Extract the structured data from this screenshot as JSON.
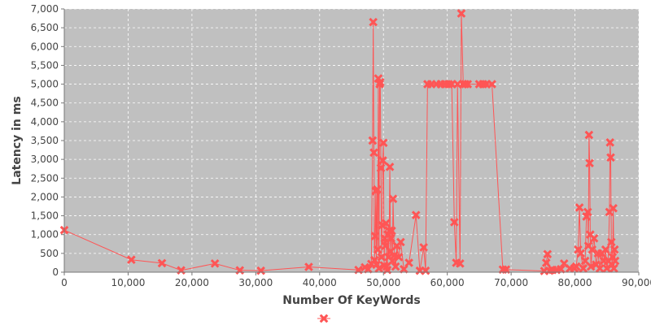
{
  "chart_data": {
    "type": "line",
    "title": "",
    "xlabel": "Number Of KeyWords",
    "ylabel": "Latency in ms",
    "xlim": [
      0,
      90000
    ],
    "ylim": [
      0,
      7000
    ],
    "xticks": [
      0,
      10000,
      20000,
      30000,
      40000,
      50000,
      60000,
      70000,
      80000,
      90000
    ],
    "yticks": [
      0,
      500,
      1000,
      1500,
      2000,
      2500,
      3000,
      3500,
      4000,
      4500,
      5000,
      5500,
      6000,
      6500,
      7000
    ],
    "grid": true,
    "legend_position": "bottom-center",
    "colors": {
      "series": "#ff5555",
      "plot_bg": "#c0c0c0",
      "grid": "#ffffff"
    },
    "series": [
      {
        "name": "",
        "marker": "x",
        "points": [
          [
            0,
            1120
          ],
          [
            10500,
            330
          ],
          [
            15300,
            240
          ],
          [
            18300,
            50
          ],
          [
            23600,
            230
          ],
          [
            27500,
            50
          ],
          [
            30800,
            40
          ],
          [
            38300,
            140
          ],
          [
            46100,
            60
          ],
          [
            47100,
            130
          ],
          [
            47600,
            80
          ],
          [
            48100,
            220
          ],
          [
            48300,
            3500
          ],
          [
            48400,
            6650
          ],
          [
            48500,
            3180
          ],
          [
            48600,
            320
          ],
          [
            48700,
            960
          ],
          [
            48800,
            2160
          ],
          [
            48900,
            200
          ],
          [
            49000,
            2200
          ],
          [
            49100,
            600
          ],
          [
            49200,
            5150
          ],
          [
            49300,
            100
          ],
          [
            49400,
            5000
          ],
          [
            49500,
            5050
          ],
          [
            49600,
            2770
          ],
          [
            49700,
            400
          ],
          [
            49800,
            1250
          ],
          [
            49900,
            2970
          ],
          [
            50000,
            3440
          ],
          [
            50100,
            180
          ],
          [
            50200,
            900
          ],
          [
            50300,
            700
          ],
          [
            50400,
            1300
          ],
          [
            50500,
            150
          ],
          [
            50600,
            60
          ],
          [
            50700,
            1000
          ],
          [
            50800,
            400
          ],
          [
            50900,
            1100
          ],
          [
            51000,
            2800
          ],
          [
            51100,
            550
          ],
          [
            51200,
            900
          ],
          [
            51300,
            1100
          ],
          [
            51400,
            300
          ],
          [
            51500,
            1950
          ],
          [
            51700,
            450
          ],
          [
            51900,
            150
          ],
          [
            52100,
            700
          ],
          [
            52400,
            400
          ],
          [
            52700,
            800
          ],
          [
            53200,
            80
          ],
          [
            54000,
            250
          ],
          [
            55100,
            1520
          ],
          [
            55700,
            40
          ],
          [
            56300,
            660
          ],
          [
            56600,
            40
          ],
          [
            56900,
            5000
          ],
          [
            57500,
            5000
          ],
          [
            58300,
            5000
          ],
          [
            59000,
            5000
          ],
          [
            59600,
            5000
          ],
          [
            60200,
            5000
          ],
          [
            60700,
            5000
          ],
          [
            61100,
            1330
          ],
          [
            61400,
            250
          ],
          [
            61600,
            5000
          ],
          [
            62000,
            230
          ],
          [
            62200,
            6880
          ],
          [
            62500,
            5000
          ],
          [
            62800,
            5000
          ],
          [
            63200,
            5000
          ],
          [
            65000,
            5000
          ],
          [
            65600,
            5000
          ],
          [
            66100,
            5000
          ],
          [
            67000,
            5000
          ],
          [
            68700,
            70
          ],
          [
            69200,
            70
          ],
          [
            75200,
            30
          ],
          [
            75500,
            250
          ],
          [
            75700,
            480
          ],
          [
            76000,
            40
          ],
          [
            76500,
            60
          ],
          [
            77100,
            60
          ],
          [
            77800,
            80
          ],
          [
            78300,
            230
          ],
          [
            79200,
            100
          ],
          [
            79900,
            100
          ],
          [
            80200,
            150
          ],
          [
            80500,
            600
          ],
          [
            80700,
            1720
          ],
          [
            80900,
            500
          ],
          [
            81300,
            100
          ],
          [
            81600,
            300
          ],
          [
            81800,
            1480
          ],
          [
            82000,
            1600
          ],
          [
            82100,
            700
          ],
          [
            82200,
            3650
          ],
          [
            82300,
            2900
          ],
          [
            82400,
            1000
          ],
          [
            82500,
            150
          ],
          [
            82700,
            600
          ],
          [
            83000,
            900
          ],
          [
            83300,
            200
          ],
          [
            83600,
            500
          ],
          [
            83900,
            100
          ],
          [
            84200,
            500
          ],
          [
            84500,
            300
          ],
          [
            84800,
            600
          ],
          [
            85000,
            100
          ],
          [
            85200,
            300
          ],
          [
            85400,
            1600
          ],
          [
            85500,
            3450
          ],
          [
            85600,
            3050
          ],
          [
            85700,
            800
          ],
          [
            85800,
            200
          ],
          [
            85900,
            400
          ],
          [
            86000,
            1700
          ],
          [
            86100,
            100
          ],
          [
            86200,
            600
          ],
          [
            86300,
            300
          ]
        ]
      }
    ]
  }
}
